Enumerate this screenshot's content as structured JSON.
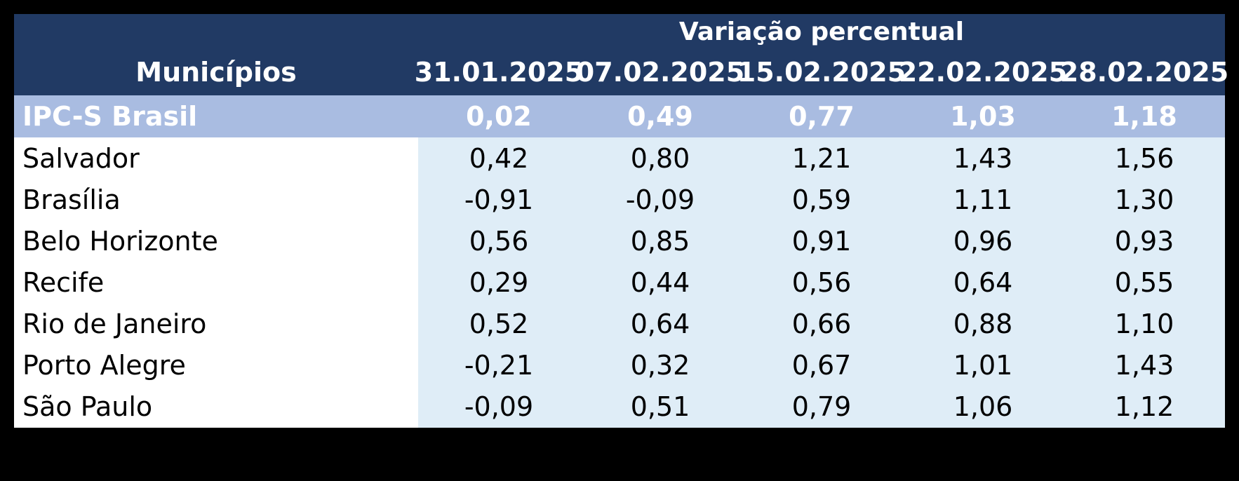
{
  "colors": {
    "header_bg": "#213A64",
    "highlight_bg": "#A9BCE1",
    "cell_bg": "#DFEDF7",
    "name_cell_bg": "#FFFFFF",
    "header_text": "#FFFFFF",
    "body_text": "#000000"
  },
  "table": {
    "group_title": "Variação percentual",
    "name_column_header": "Municípios",
    "date_columns": [
      "31.01.2025",
      "07.02.2025",
      "15.02.2025",
      "22.02.2025",
      "28.02.2025"
    ],
    "highlight_row": {
      "label": "IPC-S Brasil",
      "values": [
        "0,02",
        "0,49",
        "0,77",
        "1,03",
        "1,18"
      ]
    },
    "rows": [
      {
        "label": "Salvador",
        "values": [
          "0,42",
          "0,80",
          "1,21",
          "1,43",
          "1,56"
        ]
      },
      {
        "label": "Brasília",
        "values": [
          "-0,91",
          "-0,09",
          "0,59",
          "1,11",
          "1,30"
        ]
      },
      {
        "label": "Belo Horizonte",
        "values": [
          "0,56",
          "0,85",
          "0,91",
          "0,96",
          "0,93"
        ]
      },
      {
        "label": "Recife",
        "values": [
          "0,29",
          "0,44",
          "0,56",
          "0,64",
          "0,55"
        ]
      },
      {
        "label": "Rio de Janeiro",
        "values": [
          "0,52",
          "0,64",
          "0,66",
          "0,88",
          "1,10"
        ]
      },
      {
        "label": "Porto Alegre",
        "values": [
          "-0,21",
          "0,32",
          "0,67",
          "1,01",
          "1,43"
        ]
      },
      {
        "label": "São Paulo",
        "values": [
          "-0,09",
          "0,51",
          "0,79",
          "1,06",
          "1,12"
        ]
      }
    ]
  },
  "chart_data": {
    "type": "table",
    "title": "Variação percentual",
    "columns": [
      "Municípios",
      "31.01.2025",
      "07.02.2025",
      "15.02.2025",
      "22.02.2025",
      "28.02.2025"
    ],
    "rows": [
      [
        "IPC-S Brasil",
        0.02,
        0.49,
        0.77,
        1.03,
        1.18
      ],
      [
        "Salvador",
        0.42,
        0.8,
        1.21,
        1.43,
        1.56
      ],
      [
        "Brasília",
        -0.91,
        -0.09,
        0.59,
        1.11,
        1.3
      ],
      [
        "Belo Horizonte",
        0.56,
        0.85,
        0.91,
        0.96,
        0.93
      ],
      [
        "Recife",
        0.29,
        0.44,
        0.56,
        0.64,
        0.55
      ],
      [
        "Rio de Janeiro",
        0.52,
        0.64,
        0.66,
        0.88,
        1.1
      ],
      [
        "Porto Alegre",
        -0.21,
        0.32,
        0.67,
        1.01,
        1.43
      ],
      [
        "São Paulo",
        -0.09,
        0.51,
        0.79,
        1.06,
        1.12
      ]
    ]
  }
}
